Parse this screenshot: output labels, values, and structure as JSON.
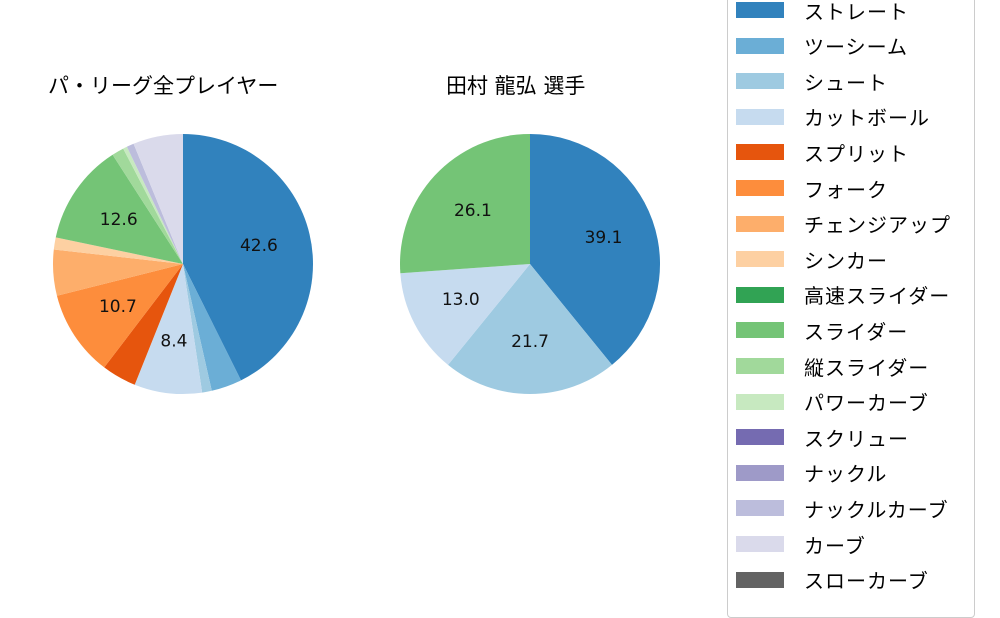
{
  "charts": {
    "left_title": "パ・リーグ全プレイヤー",
    "right_title": "田村 龍弘  選手"
  },
  "legend": {
    "items": [
      {
        "label": "ストレート",
        "color": "#3182bd"
      },
      {
        "label": "ツーシーム",
        "color": "#6baed6"
      },
      {
        "label": "シュート",
        "color": "#9ecae1"
      },
      {
        "label": "カットボール",
        "color": "#c6dbef"
      },
      {
        "label": "スプリット",
        "color": "#e6550d"
      },
      {
        "label": "フォーク",
        "color": "#fd8d3c"
      },
      {
        "label": "チェンジアップ",
        "color": "#fdae6b"
      },
      {
        "label": "シンカー",
        "color": "#fdd0a2"
      },
      {
        "label": "高速スライダー",
        "color": "#31a354"
      },
      {
        "label": "スライダー",
        "color": "#74c476"
      },
      {
        "label": "縦スライダー",
        "color": "#a1d99b"
      },
      {
        "label": "パワーカーブ",
        "color": "#c7e9c0"
      },
      {
        "label": "スクリュー",
        "color": "#756bb1"
      },
      {
        "label": "ナックル",
        "color": "#9e9ac8"
      },
      {
        "label": "ナックルカーブ",
        "color": "#bcbddc"
      },
      {
        "label": "カーブ",
        "color": "#dadaeb"
      },
      {
        "label": "スローカーブ",
        "color": "#636363"
      }
    ]
  },
  "chart_data": [
    {
      "type": "pie",
      "title": "パ・リーグ全プレイヤー",
      "start_angle": 90,
      "direction": "clockwise",
      "categories": [
        "ストレート",
        "ツーシーム",
        "シュート",
        "カットボール",
        "スプリット",
        "フォーク",
        "チェンジアップ",
        "シンカー",
        "高速スライダー",
        "スライダー",
        "縦スライダー",
        "パワーカーブ",
        "スクリュー",
        "ナックル",
        "ナックルカーブ",
        "カーブ",
        "スローカーブ"
      ],
      "values": [
        42.6,
        3.8,
        1.2,
        8.4,
        4.3,
        10.7,
        5.7,
        1.5,
        0.0,
        12.6,
        1.5,
        0.5,
        0.0,
        0.0,
        0.9,
        6.2,
        0.0
      ],
      "labels_shown": {
        "ストレート": "42.6",
        "カットボール": "8.4",
        "フォーク": "10.7",
        "スライダー": "12.6"
      },
      "colors": [
        "#3182bd",
        "#6baed6",
        "#9ecae1",
        "#c6dbef",
        "#e6550d",
        "#fd8d3c",
        "#fdae6b",
        "#fdd0a2",
        "#31a354",
        "#74c476",
        "#a1d99b",
        "#c7e9c0",
        "#756bb1",
        "#9e9ac8",
        "#bcbddc",
        "#dadaeb",
        "#636363"
      ]
    },
    {
      "type": "pie",
      "title": "田村 龍弘  選手",
      "start_angle": 90,
      "direction": "clockwise",
      "categories": [
        "ストレート",
        "シュート",
        "カットボール",
        "スライダー"
      ],
      "values": [
        39.1,
        21.7,
        13.0,
        26.1
      ],
      "labels_shown": {
        "ストレート": "39.1",
        "シュート": "21.7",
        "カットボール": "13.0",
        "スライダー": "26.1"
      },
      "colors": [
        "#3182bd",
        "#9ecae1",
        "#c6dbef",
        "#74c476"
      ]
    }
  ]
}
